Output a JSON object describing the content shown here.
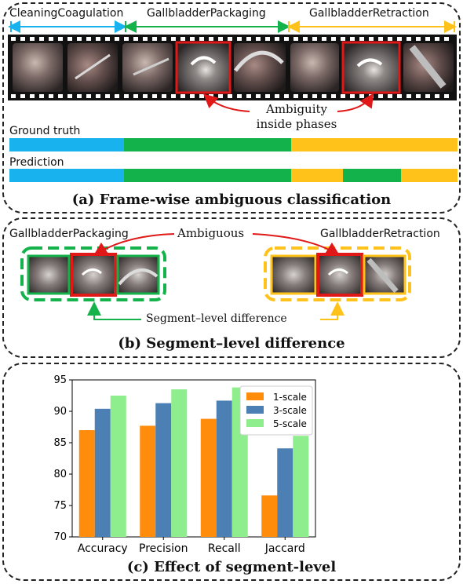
{
  "panel_a": {
    "phases": [
      "CleaningCoagulation",
      "GallbladderPackaging",
      "GallbladderRetraction"
    ],
    "ambiguity_label_line1": "Ambiguity",
    "ambiguity_label_line2": "inside phases",
    "ground_truth_label": "Ground truth",
    "prediction_label": "Prediction",
    "caption": "(a) Frame-wise ambiguous classification"
  },
  "panel_b": {
    "left_phase": "GallbladderPackaging",
    "right_phase": "GallbladderRetraction",
    "ambiguous_label": "Ambiguous",
    "difference_label": "Segment–level difference",
    "caption": "(b) Segment–level difference"
  },
  "panel_c": {
    "caption": "(c) Effect of segment-level"
  },
  "colors": {
    "cleaning": "#18b2ee",
    "packaging": "#14b24a",
    "retraction": "#ffc21a",
    "highlight": "#e01818",
    "scale1": "#ff8c0a",
    "scale3": "#4c80b4",
    "scale5": "#8eee8e"
  },
  "chart_data": {
    "type": "bar",
    "categories": [
      "Accuracy",
      "Precision",
      "Recall",
      "Jaccard"
    ],
    "series": [
      {
        "name": "1-scale",
        "values": [
          87.0,
          87.7,
          88.8,
          76.6
        ]
      },
      {
        "name": "3-scale",
        "values": [
          90.4,
          91.3,
          91.7,
          84.1
        ]
      },
      {
        "name": "5-scale",
        "values": [
          92.5,
          93.5,
          93.8,
          86.1
        ]
      }
    ],
    "ylim": [
      70,
      95
    ],
    "yticks": [
      70,
      75,
      80,
      85,
      90,
      95
    ],
    "legend": "top-right",
    "grid": false
  }
}
